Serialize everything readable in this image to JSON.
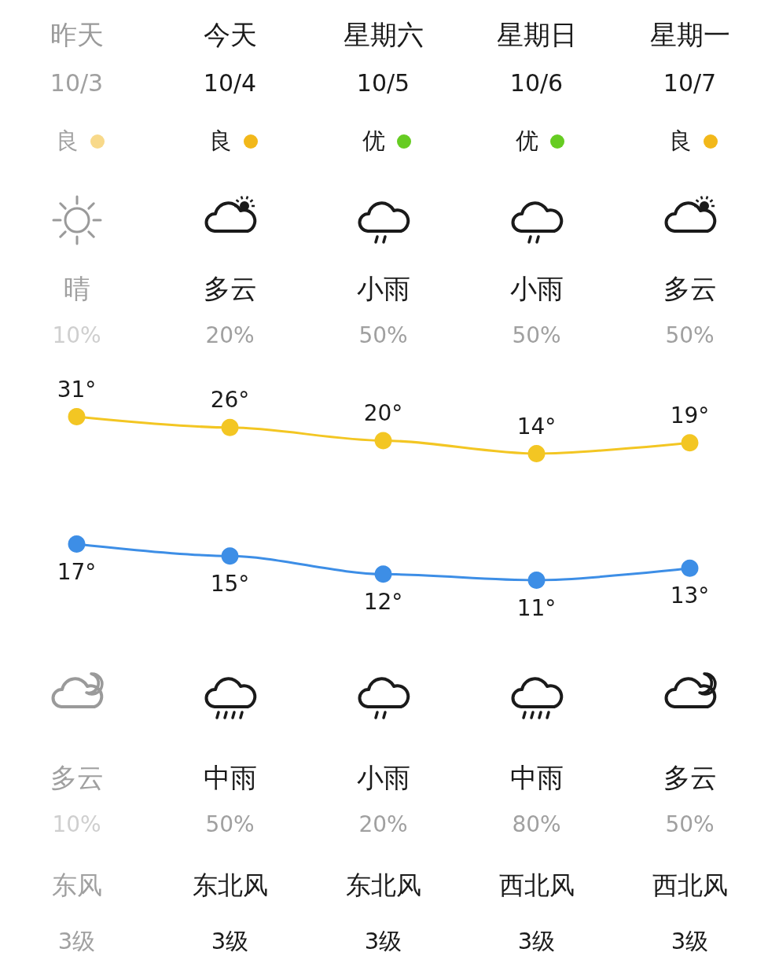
{
  "chart_data": [
    {
      "type": "line",
      "categories": [
        "昨天",
        "今天",
        "星期六",
        "星期日",
        "星期一"
      ],
      "series": [
        {
          "color": "#f3c623",
          "values": [
            31,
            26,
            20,
            14,
            19
          ],
          "value_labels": [
            "31°",
            "26°",
            "20°",
            "14°",
            "19°"
          ]
        }
      ],
      "marker": "circle",
      "annotations": [
        "10/3",
        "10/4",
        "10/5",
        "10/6",
        "10/7",
        "良",
        "良",
        "优",
        "优",
        "良",
        "晴",
        "多云",
        "小雨",
        "小雨",
        "多云",
        "10%",
        "20%",
        "50%",
        "50%",
        "50%"
      ]
    },
    {
      "type": "line",
      "categories": [
        null,
        null,
        null,
        null,
        null
      ],
      "series": [
        {
          "color": "#3d8ee6",
          "values": [
            17,
            15,
            12,
            11,
            13
          ],
          "value_labels": [
            "17°",
            "15°",
            "12°",
            "11°",
            "13°"
          ]
        }
      ],
      "marker": "circle",
      "annotations": [
        "多云",
        "中雨",
        "小雨",
        "中雨",
        "多云",
        "10%",
        "50%",
        "20%",
        "80%",
        "50%",
        "东风",
        "东北风",
        "东北风",
        "西北风",
        "西北风",
        "3级",
        "3级",
        "3级",
        "3级",
        "3级"
      ]
    }
  ]
}
